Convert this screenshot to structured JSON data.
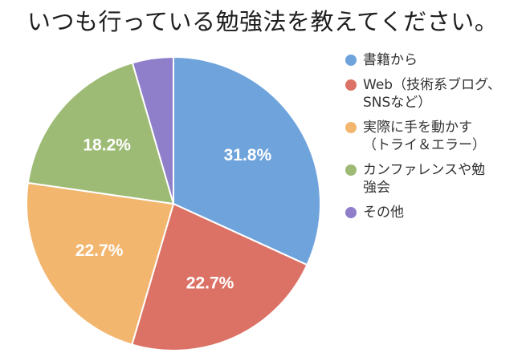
{
  "chart_data": {
    "type": "pie",
    "title": "いつも行っている勉強法を教えてください。",
    "slices": [
      {
        "name": "書籍から",
        "value": 31.8,
        "label": "31.8%",
        "color": "#6fa3dc"
      },
      {
        "name": "Web（技術系ブログ、\nSNSなど）",
        "value": 22.7,
        "label": "22.7%",
        "color": "#db7265"
      },
      {
        "name": "実際に手を動かす\n（トライ＆エラー）",
        "value": 22.7,
        "label": "22.7%",
        "color": "#f2b66f"
      },
      {
        "name": "カンファレンスや勉\n強会",
        "value": 18.2,
        "label": "18.2%",
        "color": "#9dbb75"
      },
      {
        "name": "その他",
        "value": 4.5,
        "label": "",
        "color": "#8f7fca"
      }
    ],
    "start": "top",
    "direction": "clockwise",
    "legend_position": "right"
  }
}
